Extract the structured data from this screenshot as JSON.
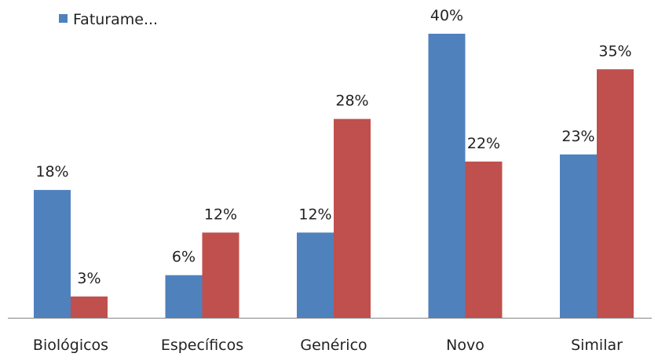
{
  "chart_data": {
    "type": "bar",
    "categories": [
      "Biológicos",
      "Específicos",
      "Genérico",
      "Novo",
      "Similar"
    ],
    "series": [
      {
        "name": "Faturame...",
        "values": [
          18,
          6,
          12,
          40,
          23
        ],
        "labels": [
          "18%",
          "6%",
          "12%",
          "40%",
          "23%"
        ],
        "color": "#4F81BD"
      },
      {
        "values": [
          3,
          12,
          28,
          22,
          35
        ],
        "labels": [
          "3%",
          "12%",
          "28%",
          "22%",
          "35%"
        ],
        "color": "#C0504D"
      }
    ],
    "ylim": [
      0,
      40
    ],
    "unit": "%",
    "legend": {
      "position": "top-left",
      "text": "Faturame..."
    },
    "grid": false
  }
}
